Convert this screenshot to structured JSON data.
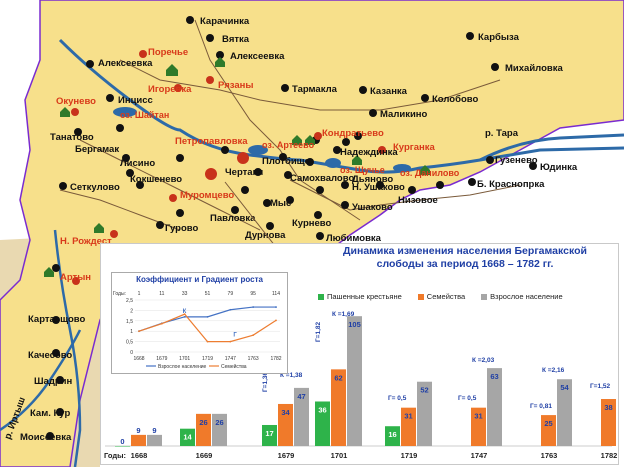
{
  "map": {
    "colors": {
      "land": "#f7e08b",
      "outer_land": "#e9d9b1",
      "sea": "#ffffff",
      "river": "#2d6aa8",
      "road": "#7a5a3a",
      "dot": "#111111",
      "red_dot": "#c8321b",
      "house": "#2f7a2a",
      "border": "#7a2bd0"
    },
    "villages_black": [
      "Карачинка",
      "Вятка",
      "Алексеевка",
      "Карбыза",
      "Михайловка",
      "Алексеевка",
      "Инцисс",
      "Тармакла",
      "Казанка",
      "Колобово",
      "Маликино",
      "Танатово",
      "Бергамак",
      "Надеждинка",
      "Лисино",
      "Кокшенево",
      "Плотбище",
      "Чертаки",
      "Самохвалово",
      "Дьяново",
      "Низовое",
      "Б. Краснопрка",
      "Гузенево",
      "Юдинка",
      "Сеткулово",
      "Мыс",
      "Павловка",
      "Гурово",
      "Дурнова",
      "Курнево",
      "Любимовка",
      "Ушаково",
      "Н. Ушаково",
      "Картасщово",
      "Качесово",
      "Шадрин",
      "Кам. Кур",
      "Моисеевка"
    ],
    "villages_red": [
      "Поречье",
      "Игоревка",
      "Рязаны",
      "Окунево",
      "Петропавловка",
      "Кондратьево",
      "Курганка",
      "Муромцево",
      "Н. Рождест",
      "Артын"
    ],
    "lakes": [
      "оз. Шайтан",
      "оз. Артеево",
      "оз. Щучье",
      "оз. Данилово"
    ],
    "rivers": [
      "р. Тара",
      "р. Иртыш"
    ]
  },
  "chart_data": [
    {
      "type": "bar",
      "title": "Динамика изменения населения Бергамакской слободы за период 1668 – 1782 гг.",
      "x_prefix": "Годы:",
      "categories": [
        "1668",
        "1669",
        "1679",
        "1701",
        "1719",
        "1747",
        "1763",
        "1782"
      ],
      "series": [
        {
          "name": "Пашенные крестьяне",
          "color": "#2eb34a",
          "values": [
            0,
            14,
            17,
            36,
            16,
            null,
            null,
            null
          ]
        },
        {
          "name": "Семейства",
          "color": "#f07a2a",
          "values": [
            9,
            26,
            34,
            62,
            31,
            31,
            25,
            38
          ]
        },
        {
          "name": "Взрослое население",
          "color": "#a6a6a6",
          "values": [
            9,
            26,
            47,
            105,
            52,
            63,
            54,
            82
          ]
        }
      ],
      "annotations": [
        "К =1,38",
        "Г=1,36",
        "К =1,69",
        "Г=1,82",
        "Г= 0,5",
        "Г= 0,5",
        "К =2,03",
        "К =2,16",
        "Г= 0,81",
        "Г=1,52"
      ],
      "ylim": [
        0,
        110
      ]
    },
    {
      "type": "line",
      "title": "Коэффициент и Градиент роста",
      "x_prefix": "Годы:",
      "x_top": [
        "1",
        "11",
        "33",
        "51",
        "79",
        "95",
        "114"
      ],
      "x": [
        "1668",
        "1679",
        "1701",
        "1719",
        "1747",
        "1763",
        "1782"
      ],
      "y_ticks": [
        "0",
        "0,5",
        "1",
        "1,5",
        "2",
        "2,5"
      ],
      "ylim": [
        0,
        2.5
      ],
      "point_labels": [
        "К",
        "Г"
      ],
      "series": [
        {
          "name": "Взрослое население",
          "color": "#4472c4",
          "values": [
            1.0,
            1.38,
            1.69,
            1.69,
            2.03,
            2.16,
            2.16
          ]
        },
        {
          "name": "Семейства",
          "color": "#ed7d31",
          "values": [
            1.0,
            1.36,
            1.82,
            0.5,
            0.5,
            0.81,
            1.52
          ]
        }
      ]
    }
  ]
}
